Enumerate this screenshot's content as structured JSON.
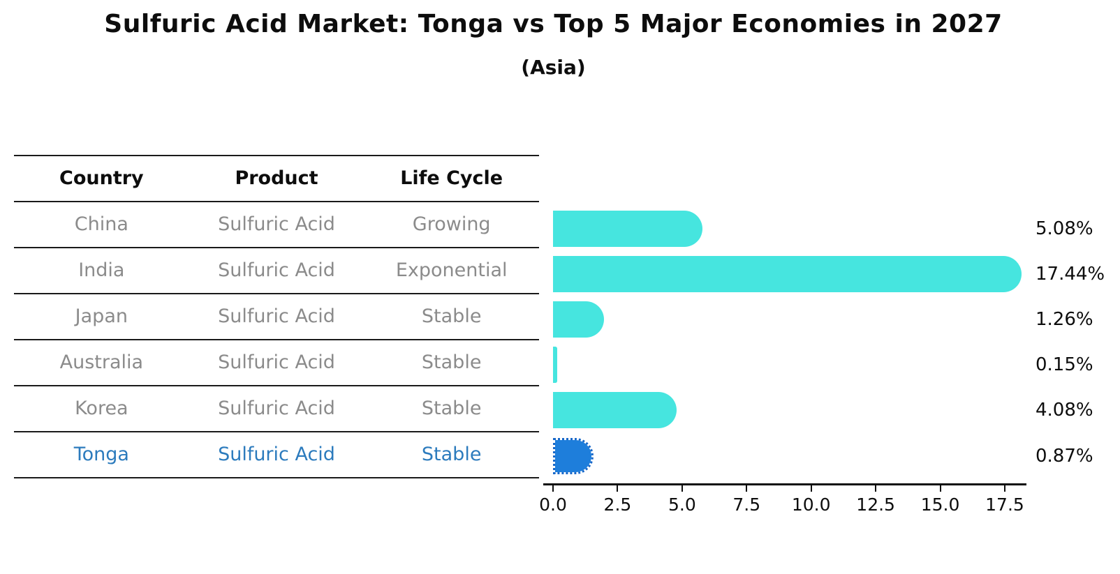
{
  "header": {
    "title": "Sulfuric Acid Market: Tonga vs Top 5 Major Economies in 2027",
    "subtitle": "(Asia)"
  },
  "table": {
    "headers": [
      "Country",
      "Product",
      "Life Cycle"
    ],
    "rows": [
      {
        "country": "China",
        "product": "Sulfuric Acid",
        "life_cycle": "Growing"
      },
      {
        "country": "India",
        "product": "Sulfuric Acid",
        "life_cycle": "Exponential"
      },
      {
        "country": "Japan",
        "product": "Sulfuric Acid",
        "life_cycle": "Stable"
      },
      {
        "country": "Australia",
        "product": "Sulfuric Acid",
        "life_cycle": "Stable"
      },
      {
        "country": "Korea",
        "product": "Sulfuric Acid",
        "life_cycle": "Stable"
      },
      {
        "country": "Tonga",
        "product": "Sulfuric Acid",
        "life_cycle": "Stable"
      }
    ],
    "highlighted_row": "Tonga"
  },
  "chart_data": {
    "type": "bar",
    "orientation": "horizontal",
    "title": "Sulfuric Acid Market: Tonga vs Top 5 Major Economies in 2027",
    "subtitle": "(Asia)",
    "categories": [
      "China",
      "India",
      "Japan",
      "Australia",
      "Korea",
      "Tonga"
    ],
    "values": [
      5.08,
      17.44,
      1.26,
      0.15,
      4.08,
      0.87
    ],
    "value_labels": [
      "5.08%",
      "17.44%",
      "1.26%",
      "0.15%",
      "4.08%",
      "0.87%"
    ],
    "xlabel": "",
    "ylabel": "",
    "xlim": [
      0,
      18.5
    ],
    "x_ticks": [
      0.0,
      2.5,
      5.0,
      7.5,
      10.0,
      12.5,
      15.0,
      17.5
    ],
    "x_tick_labels": [
      "0.0",
      "2.5",
      "5.0",
      "7.5",
      "10.0",
      "12.5",
      "15.0",
      "17.5"
    ],
    "grid": false,
    "legend": false,
    "highlight_index": 5,
    "bar_color": "#46e5df",
    "highlight_color": "#1e7edb",
    "table_text_color": "#8b8b8b",
    "highlight_text_color": "#2c7bbd",
    "text_color": "#0d0d0d"
  }
}
